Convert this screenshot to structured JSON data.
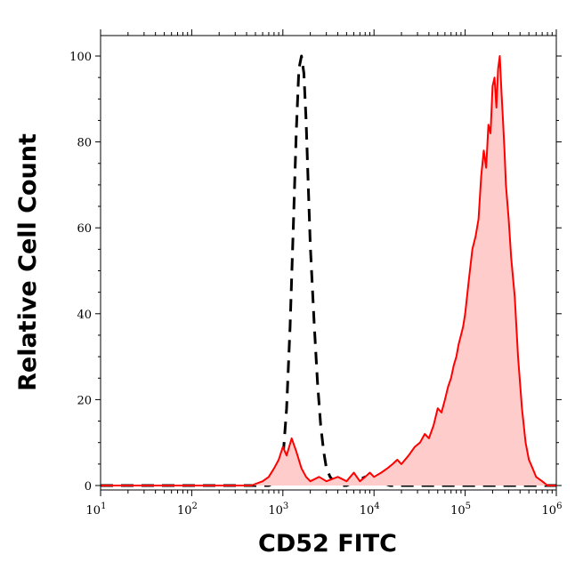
{
  "chart_data": {
    "type": "area",
    "xlabel": "CD52 FITC",
    "ylabel": "Relative Cell Count",
    "x_scale": "log10",
    "xlim": [
      10,
      1000000
    ],
    "ylim": [
      0,
      105
    ],
    "grid": false,
    "x_ticks": [
      {
        "base": "10",
        "exp": "1"
      },
      {
        "base": "10",
        "exp": "2"
      },
      {
        "base": "10",
        "exp": "3"
      },
      {
        "base": "10",
        "exp": "4"
      },
      {
        "base": "10",
        "exp": "5"
      },
      {
        "base": "10",
        "exp": "6"
      }
    ],
    "y_ticks": [
      "0",
      "20",
      "40",
      "60",
      "80",
      "100"
    ],
    "series": [
      {
        "style": "dashed",
        "color": "#000000",
        "fill": "none",
        "x": [
          10,
          100,
          700,
          850,
          1000,
          1100,
          1200,
          1300,
          1400,
          1500,
          1600,
          1700,
          1800,
          1900,
          2000,
          2200,
          2400,
          2600,
          2800,
          3000,
          3300,
          3600,
          4000,
          5000,
          8000,
          15000,
          30000,
          100000,
          300000,
          1000000
        ],
        "y": [
          0,
          0,
          0,
          1,
          6,
          18,
          37,
          60,
          82,
          97,
          100,
          96,
          85,
          70,
          56,
          38,
          24,
          14,
          8,
          4,
          2,
          1,
          0,
          0,
          2,
          0,
          0,
          0,
          0,
          0
        ]
      },
      {
        "style": "solid",
        "color": "#ff0000",
        "fill": "#ffcccc",
        "x": [
          10,
          100,
          450,
          600,
          700,
          800,
          900,
          1000,
          1100,
          1250,
          1400,
          1600,
          1800,
          2000,
          2500,
          3000,
          4000,
          5000,
          6000,
          7000,
          8000,
          9000,
          10000,
          12000,
          14000,
          16000,
          18000,
          20000,
          24000,
          28000,
          32000,
          36000,
          40000,
          45000,
          50000,
          55000,
          60000,
          65000,
          70000,
          75000,
          80000,
          85000,
          90000,
          95000,
          100000,
          110000,
          120000,
          130000,
          140000,
          150000,
          160000,
          170000,
          180000,
          190000,
          200000,
          210000,
          220000,
          230000,
          240000,
          250000,
          260000,
          270000,
          280000,
          300000,
          320000,
          350000,
          380000,
          420000,
          460000,
          500000,
          550000,
          600000,
          700000,
          800000,
          1000000
        ],
        "y": [
          0,
          0,
          0,
          1,
          2,
          4,
          6,
          9,
          7,
          11,
          8,
          4,
          2,
          1,
          2,
          1,
          2,
          1,
          3,
          1,
          2,
          3,
          2,
          3,
          4,
          5,
          6,
          5,
          7,
          9,
          10,
          12,
          11,
          14,
          18,
          17,
          20,
          23,
          25,
          28,
          30,
          33,
          35,
          37,
          40,
          48,
          55,
          58,
          62,
          72,
          78,
          74,
          84,
          82,
          93,
          95,
          88,
          97,
          100,
          92,
          85,
          78,
          70,
          62,
          53,
          44,
          30,
          18,
          10,
          6,
          4,
          2,
          1,
          0,
          0
        ]
      }
    ]
  }
}
